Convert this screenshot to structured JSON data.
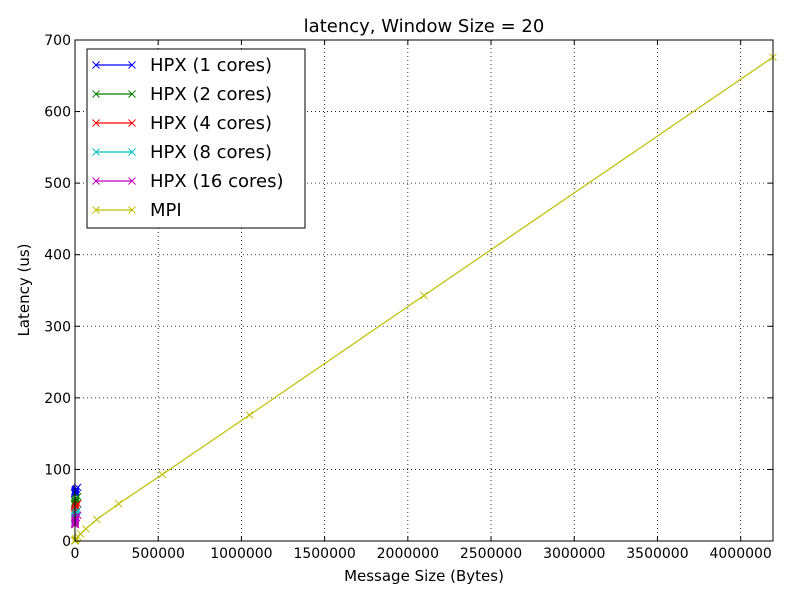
{
  "chart_data": {
    "type": "line",
    "title": "latency, Window Size = 20",
    "xlabel": "Message Size (Bytes)",
    "ylabel": "Latency (us)",
    "xlim": [
      0,
      4194304
    ],
    "ylim": [
      0,
      700
    ],
    "grid": true,
    "legend_position": "top-left",
    "x_ticks": [
      0,
      500000,
      1000000,
      1500000,
      2000000,
      2500000,
      3000000,
      3500000,
      4000000
    ],
    "x_tick_labels": [
      "0",
      "500000",
      "1000000",
      "1500000",
      "2000000",
      "2500000",
      "3000000",
      "3500000",
      "4000000"
    ],
    "y_ticks": [
      0,
      100,
      200,
      300,
      400,
      500,
      600,
      700
    ],
    "y_tick_labels": [
      "0",
      "100",
      "200",
      "300",
      "400",
      "500",
      "600",
      "700"
    ],
    "series": [
      {
        "name": "HPX (1 cores)",
        "color": "#0000ff",
        "marker": "x",
        "x": [
          1,
          2,
          4,
          8,
          16,
          32,
          64,
          128,
          256,
          512,
          1024,
          2048,
          4096,
          8192,
          16384
        ],
        "y": [
          66,
          66,
          67,
          66,
          67,
          67,
          67,
          68,
          68,
          69,
          70,
          71,
          72,
          73,
          75
        ]
      },
      {
        "name": "HPX (2 cores)",
        "color": "#008000",
        "marker": "x",
        "x": [
          1,
          2,
          4,
          8,
          16,
          32,
          64,
          128,
          256,
          512,
          1024,
          2048,
          4096,
          8192,
          16384
        ],
        "y": [
          50,
          50,
          51,
          51,
          51,
          52,
          52,
          52,
          53,
          54,
          55,
          56,
          58,
          60,
          62
        ]
      },
      {
        "name": "HPX (4 cores)",
        "color": "#ff0000",
        "marker": "x",
        "x": [
          1,
          2,
          4,
          8,
          16,
          32,
          64,
          128,
          256,
          512,
          1024,
          2048,
          4096,
          8192,
          16384
        ],
        "y": [
          38,
          38,
          38,
          39,
          39,
          39,
          40,
          40,
          41,
          42,
          43,
          45,
          47,
          49,
          52
        ]
      },
      {
        "name": "HPX (8 cores)",
        "color": "#00bfbf",
        "marker": "x",
        "x": [
          1,
          2,
          4,
          8,
          16,
          32,
          64,
          128,
          256,
          512,
          1024,
          2048,
          4096,
          8192,
          16384
        ],
        "y": [
          30,
          30,
          30,
          31,
          31,
          31,
          32,
          32,
          33,
          34,
          35,
          36,
          38,
          40,
          43
        ]
      },
      {
        "name": "HPX (16 cores)",
        "color": "#bf00bf",
        "marker": "x",
        "x": [
          1,
          2,
          4,
          8,
          16,
          32,
          64,
          128,
          256,
          512,
          1024,
          2048,
          4096,
          8192,
          16384
        ],
        "y": [
          23,
          23,
          23,
          24,
          24,
          24,
          25,
          25,
          26,
          27,
          28,
          29,
          31,
          33,
          36
        ]
      },
      {
        "name": "MPI",
        "color": "#bfbf00",
        "marker": "x",
        "x": [
          1,
          2,
          4,
          8,
          16,
          32,
          64,
          128,
          256,
          512,
          1024,
          2048,
          4096,
          8192,
          16384,
          32768,
          65536,
          131072,
          262144,
          524288,
          1048576,
          2097152,
          4194304
        ],
        "y": [
          0.3,
          0.3,
          0.3,
          0.3,
          0.3,
          0.3,
          0.4,
          0.4,
          0.5,
          0.6,
          0.8,
          1.2,
          2,
          3.5,
          6,
          10,
          17,
          30,
          52,
          93,
          176,
          343,
          676
        ]
      }
    ]
  }
}
